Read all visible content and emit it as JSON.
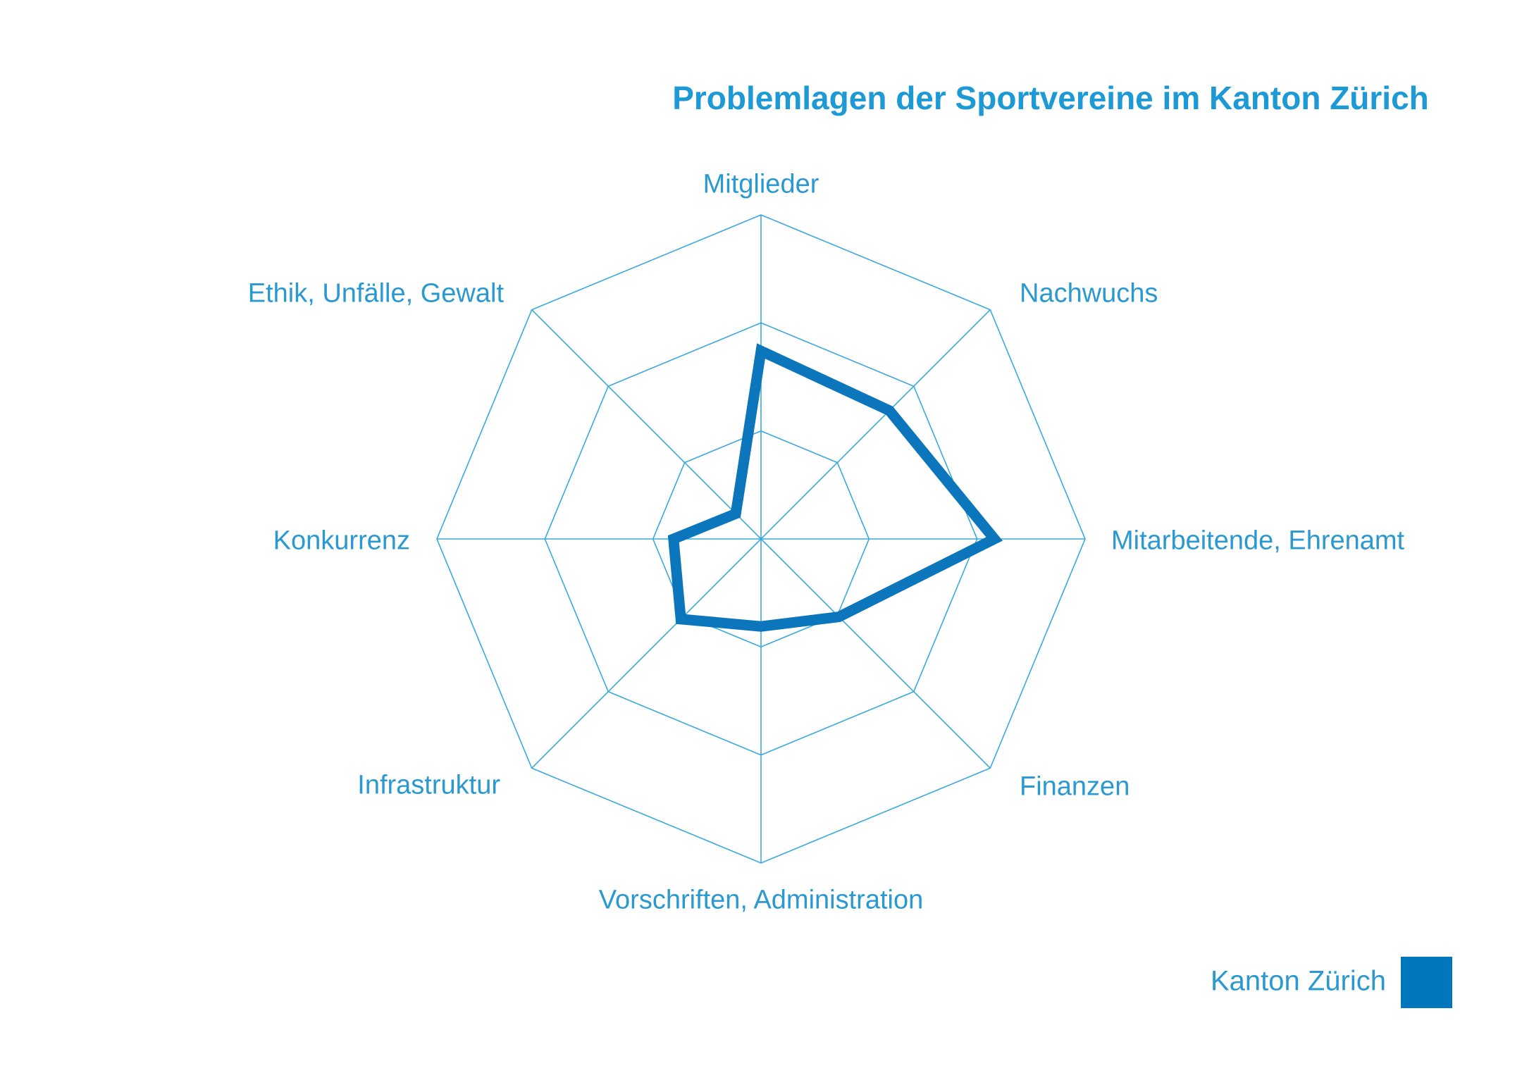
{
  "title": "Problemlagen der Sportvereine im Kanton Zürich",
  "legend": {
    "label": "Kanton Zürich",
    "square_color": "#0077bd"
  },
  "colors": {
    "title": "#1d99d6",
    "labels": "#2b99d1",
    "grid": "#3aa9dc",
    "series_line": "#0b76bb",
    "legend_square": "#0077bd"
  },
  "chart_data": {
    "type": "radar",
    "title": "Problemlagen der Sportvereine im Kanton Zürich",
    "categories": [
      "Mitglieder",
      "Nachwuchs",
      "Mitarbeitende, Ehrenamt",
      "Finanzen",
      "Vorschriften, Administration",
      "Infrastruktur",
      "Konkurrenz",
      "Ethik, Unfälle, Gewalt"
    ],
    "series": [
      {
        "name": "Kanton Zürich",
        "values": [
          0.58,
          0.56,
          0.72,
          0.34,
          0.27,
          0.35,
          0.27,
          0.11
        ]
      }
    ],
    "values_scale": "fraction of outer grid ring; axes carry no numeric tick labels",
    "grid_levels": 3,
    "grid_shape": "octagonal web: 3 concentric octagon rings plus 8 radial spokes",
    "axis_start": "top, clockwise",
    "legend_position": "bottom-right",
    "xlabel": "",
    "ylabel": ""
  }
}
